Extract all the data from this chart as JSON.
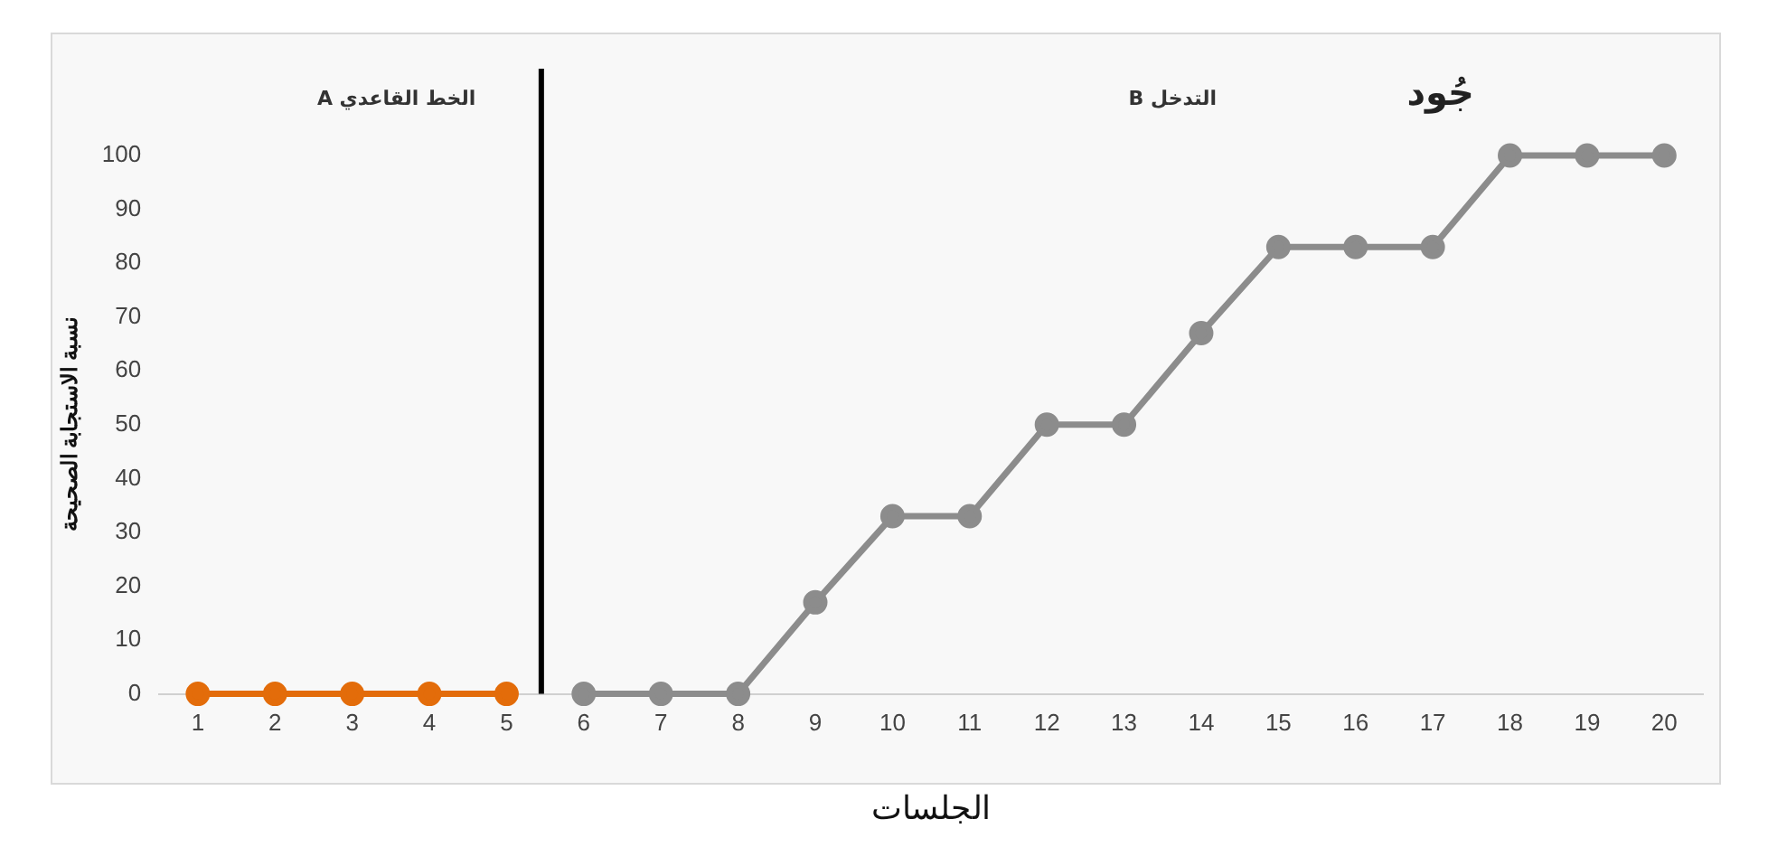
{
  "chart_data": {
    "type": "line",
    "title": "جُود",
    "xlabel": "الجلسات",
    "ylabel": "نسبة الاستجابة الصحيحة",
    "annotations": [
      "الخط القاعدي A",
      "التدخل B"
    ],
    "xlim": [
      0.5,
      20.5
    ],
    "xticks": [
      1,
      2,
      3,
      4,
      5,
      6,
      7,
      8,
      9,
      10,
      11,
      12,
      13,
      14,
      15,
      16,
      17,
      18,
      19,
      20
    ],
    "ylim": [
      0,
      100
    ],
    "yticks": [
      0,
      10,
      20,
      30,
      40,
      50,
      60,
      70,
      80,
      90,
      100
    ],
    "series": [
      {
        "color": "#e36c0a",
        "x": [
          1,
          2,
          3,
          4,
          5
        ],
        "values": [
          0,
          0,
          0,
          0,
          0
        ]
      },
      {
        "color": "#8c8c8c",
        "x": [
          6,
          7,
          8,
          9,
          10,
          11,
          12,
          13,
          14,
          15,
          16,
          17,
          18,
          19,
          20
        ],
        "values": [
          0,
          0,
          0,
          17,
          33,
          33,
          50,
          50,
          67,
          83,
          83,
          83,
          100,
          100,
          100
        ]
      }
    ],
    "ref_lines": [
      {
        "axis": "x",
        "value": 5.45,
        "color": "#000000"
      }
    ],
    "grid": false,
    "legend": false,
    "marker": "circle",
    "line_style": "solid"
  }
}
